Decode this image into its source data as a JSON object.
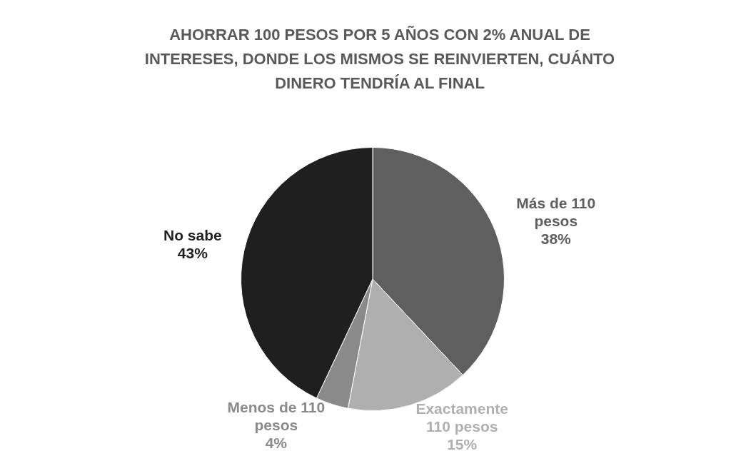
{
  "chart_data": {
    "type": "pie",
    "title": "AHORRAR 100 PESOS POR 5 AÑOS CON 2% ANUAL DE INTERESES, DONDE LOS MISMOS SE REINVIERTEN, CUÁNTO DINERO TENDRÍA AL FINAL",
    "categories": [
      "Más de 110 pesos",
      "Exactamente 110 pesos",
      "Menos de 110 pesos",
      "No sabe"
    ],
    "values": [
      38,
      15,
      4,
      43
    ],
    "colors": [
      "#5f5f5f",
      "#afafaf",
      "#8a8a8a",
      "#1f1f1f"
    ],
    "value_labels": [
      "38%",
      "15%",
      "4%",
      "43%"
    ],
    "legend": false
  }
}
